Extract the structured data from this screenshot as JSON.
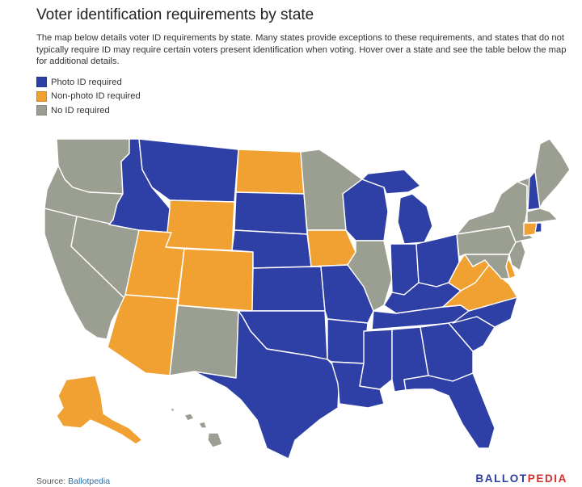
{
  "title": "Voter identification requirements by state",
  "description": "The map below details voter ID requirements by state. Many states provide exceptions to these requirements, and states that do not typically require ID may require certain voters present identification when voting. Hover over a state and see the table below the map for additional details.",
  "legend": [
    {
      "label": "Photo ID required",
      "category": "photo",
      "color": "#2e3fa6"
    },
    {
      "label": "Non-photo ID required",
      "category": "nonphoto",
      "color": "#f0a132"
    },
    {
      "label": "No ID required",
      "category": "none",
      "color": "#9a9f92"
    }
  ],
  "states": {
    "WA": "none",
    "OR": "none",
    "CA": "none",
    "NV": "none",
    "ID": "photo",
    "MT": "photo",
    "WY": "nonphoto",
    "UT": "nonphoto",
    "AZ": "nonphoto",
    "CO": "nonphoto",
    "NM": "none",
    "ND": "nonphoto",
    "SD": "photo",
    "NE": "photo",
    "KS": "photo",
    "OK": "photo",
    "TX": "photo",
    "MN": "none",
    "IA": "nonphoto",
    "MO": "photo",
    "AR": "photo",
    "LA": "photo",
    "WI": "photo",
    "IL": "none",
    "MI": "photo",
    "IN": "photo",
    "OH": "photo",
    "KY": "photo",
    "TN": "photo",
    "MS": "photo",
    "AL": "photo",
    "GA": "photo",
    "FL": "photo",
    "SC": "photo",
    "NC": "photo",
    "VA": "nonphoto",
    "WV": "nonphoto",
    "PA": "none",
    "NY": "none",
    "VT": "none",
    "NH": "photo",
    "ME": "none",
    "MA": "none",
    "RI": "photo",
    "CT": "nonphoto",
    "NJ": "none",
    "DE": "nonphoto",
    "MD": "none",
    "AK": "nonphoto",
    "HI": "none"
  },
  "source": {
    "prefix": "Source: ",
    "link_text": "Ballotpedia"
  },
  "brand": {
    "part1": "BALLOT",
    "part2": "PEDIA"
  }
}
